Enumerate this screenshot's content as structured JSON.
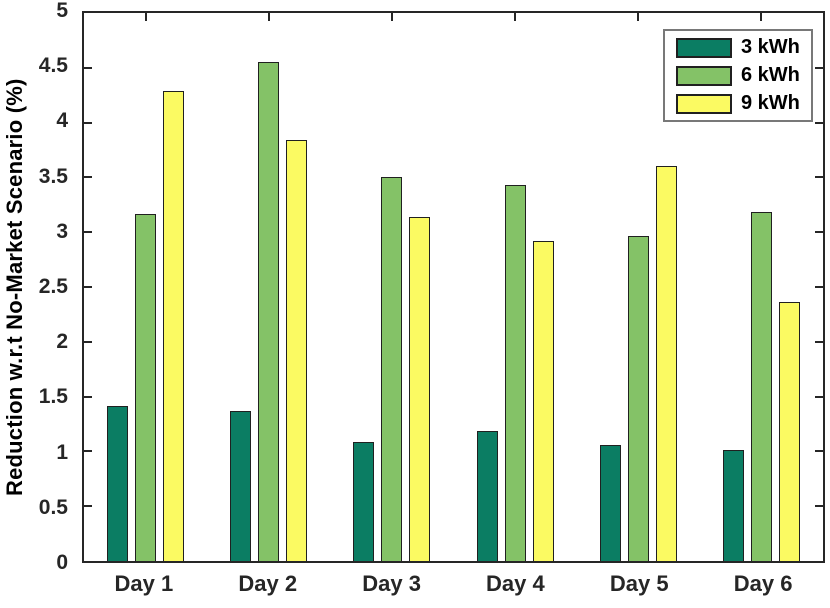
{
  "chart_data": {
    "type": "bar",
    "title": "",
    "categories": [
      "Day 1",
      "Day 2",
      "Day 3",
      "Day 4",
      "Day 5",
      "Day 6"
    ],
    "series": [
      {
        "name": "3 kWh",
        "color": "#0B7D63",
        "values": [
          1.41,
          1.37,
          1.09,
          1.19,
          1.06,
          1.01
        ]
      },
      {
        "name": "6 kWh",
        "color": "#84C267",
        "values": [
          3.17,
          4.55,
          3.5,
          3.43,
          2.97,
          3.18
        ]
      },
      {
        "name": "9 kWh",
        "color": "#FBFA62",
        "values": [
          4.29,
          3.84,
          3.14,
          2.92,
          3.6,
          2.36
        ]
      }
    ],
    "xlabel": "",
    "ylabel": "Reduction w.r.t No-Market Scenario (%)",
    "ylim": [
      0,
      5
    ],
    "yticks": [
      0,
      0.5,
      1,
      1.5,
      2,
      2.5,
      3,
      3.5,
      4,
      4.5,
      5
    ],
    "ytick_labels": [
      "0",
      "0.5",
      "1",
      "1.5",
      "2",
      "2.5",
      "3",
      "3.5",
      "4",
      "4.5",
      "5"
    ],
    "legend": {
      "position": "top-right",
      "entries": [
        "3 kWh",
        "6 kWh",
        "9 kWh"
      ]
    },
    "grid": false,
    "colors": {
      "axis": "#262626",
      "tick_label": "#262626",
      "bar_edge": "#202020",
      "legend_border": "#787878",
      "background": "#ffffff"
    }
  }
}
